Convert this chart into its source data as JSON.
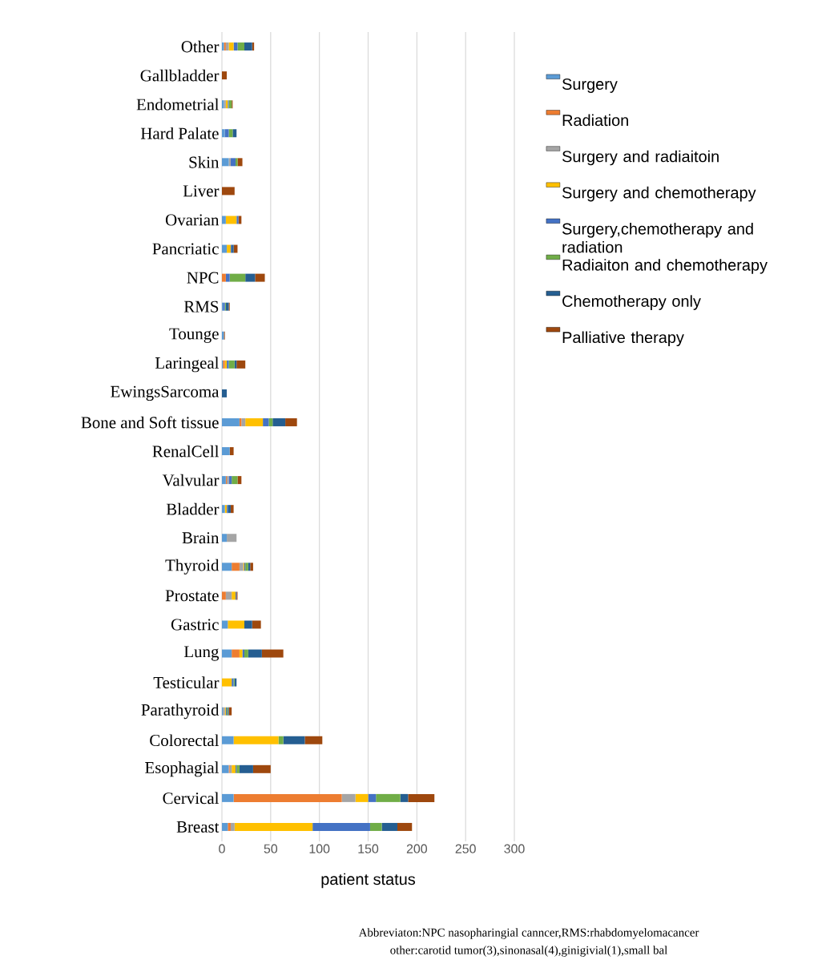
{
  "chart_data": {
    "type": "bar",
    "orientation": "horizontal",
    "stacked": true,
    "xlabel": "patient status",
    "categories": [
      "Other",
      "Gallbladder",
      "Endometrial",
      "Hard Palate",
      "Skin",
      "Liver",
      "Ovarian",
      "Pancriatic",
      "NPC",
      "RMS",
      "Tounge",
      "Laringeal",
      "EwingsSarcoma",
      "Bone and Soft tissue",
      "RenalCell",
      "Valvular",
      "Bladder",
      "Brain",
      "Thyroid",
      "Prostate",
      "Gastric",
      "Lung",
      "Testicular",
      "Parathyroid",
      "Colorectal",
      "Esophagial",
      "Cervical",
      "Breast"
    ],
    "series": [
      {
        "name": "Surgery",
        "color": "#5b9bd5",
        "values": [
          2,
          0,
          2,
          3,
          7,
          0,
          4,
          5,
          0,
          1,
          2,
          1,
          0,
          18,
          8,
          4,
          3,
          5,
          10,
          0,
          6,
          10,
          0,
          1,
          12,
          7,
          12,
          6
        ]
      },
      {
        "name": "Radiation",
        "color": "#ed7d31",
        "values": [
          2,
          0,
          0,
          0,
          0,
          0,
          0,
          0,
          4,
          0,
          0,
          2,
          0,
          2,
          0,
          1,
          0,
          0,
          8,
          4,
          0,
          8,
          0,
          0,
          0,
          1,
          111,
          3
        ]
      },
      {
        "name": "Surgery and radiaitoin",
        "color": "#a5a5a5",
        "values": [
          3,
          0,
          2,
          0,
          2,
          0,
          0,
          0,
          0,
          0,
          null,
          0,
          0,
          4,
          null,
          2,
          0,
          10,
          4,
          6,
          0,
          0,
          0,
          2,
          0,
          2,
          14,
          4
        ]
      },
      {
        "name": "Surgery and chemotherapy",
        "color": "#ffc000",
        "values": [
          5,
          0,
          2,
          0,
          0,
          0,
          11,
          4,
          0,
          0,
          0,
          2,
          0,
          18,
          0,
          0,
          2,
          0,
          1,
          4,
          17,
          3,
          10,
          1,
          46,
          4,
          13,
          80
        ]
      },
      {
        "name": "Surgery,chemotherapy and radiation",
        "color": "#4472c4",
        "values": [
          4,
          0,
          1,
          4,
          5,
          0,
          2,
          1,
          4,
          2,
          0,
          2,
          0,
          6,
          0,
          3,
          1,
          0,
          1,
          1,
          0,
          2,
          2,
          1,
          0,
          1,
          8,
          59
        ]
      },
      {
        "name": "Radiaiton and chemotherapy",
        "color": "#70ad47",
        "values": [
          7,
          0,
          3,
          4,
          2,
          0,
          0,
          0,
          16,
          1,
          0,
          6,
          0,
          4,
          0,
          6,
          0,
          0,
          3,
          0,
          0,
          4,
          1,
          1,
          5,
          3,
          25,
          12
        ]
      },
      {
        "name": "Chemotherapy only",
        "color": "#255e91",
        "values": [
          8,
          0,
          0,
          4,
          0,
          0,
          0,
          2,
          10,
          3,
          0,
          2,
          5,
          13,
          0,
          0,
          3,
          0,
          2,
          0,
          8,
          14,
          2,
          1,
          22,
          14,
          8,
          16
        ]
      },
      {
        "name": "Palliative therapy",
        "color": "#9e480e",
        "values": [
          2,
          5,
          1,
          0,
          5,
          13,
          3,
          4,
          10,
          1,
          1,
          9,
          0,
          12,
          4,
          4,
          3,
          0,
          3,
          1,
          9,
          22,
          0,
          3,
          18,
          18,
          27,
          15
        ]
      }
    ],
    "xlim": [
      0,
      300
    ],
    "xticks": [
      0,
      50,
      100,
      150,
      200,
      250,
      300
    ],
    "grid": "x",
    "legend": "right",
    "annotations": [
      "Abbreviaton:NPC nasopharingial canncer,RMS:rhabdomyelomacancer",
      "other:carotid tumor(3),sinonasal(4),ginigivial(1),small bal"
    ]
  }
}
